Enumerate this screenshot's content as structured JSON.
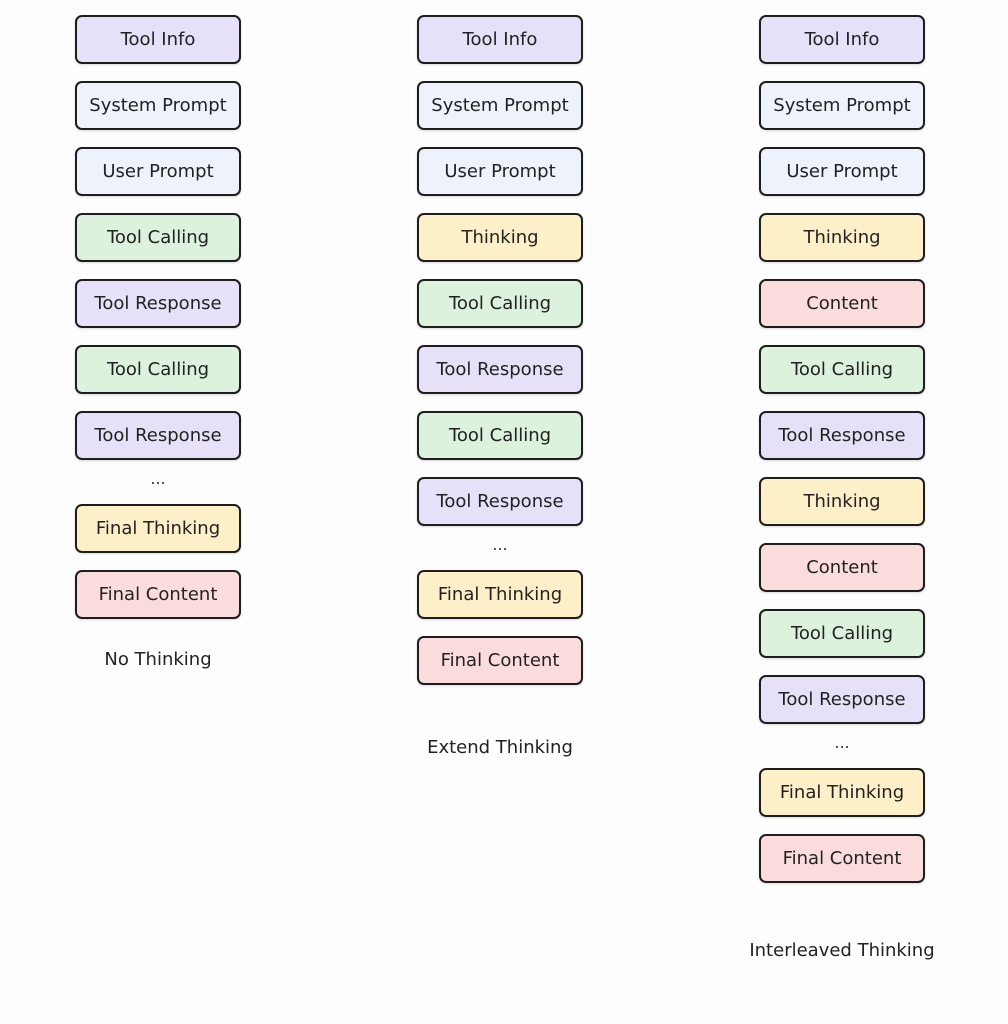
{
  "colors": {
    "Tool Info": "#e6e0f8",
    "System Prompt": "#edf2fb",
    "User Prompt": "#edf2fb",
    "Tool Calling": "#dcf2dc",
    "Tool Response": "#e6e0f8",
    "Thinking": "#fdf0c8",
    "Final Thinking": "#fdf0c8",
    "Content": "#fbdcdc",
    "Final Content": "#fbdcdc"
  },
  "columns": [
    {
      "label": "No Thinking",
      "items": [
        "Tool Info",
        "System Prompt",
        "User Prompt",
        "Tool Calling",
        "Tool Response",
        "Tool Calling",
        "Tool Response",
        "...",
        "Final Thinking",
        "Final Content"
      ]
    },
    {
      "label": "Extend Thinking",
      "items": [
        "Tool Info",
        "System Prompt",
        "User Prompt",
        "Thinking",
        "Tool Calling",
        "Tool Response",
        "Tool Calling",
        "Tool Response",
        "...",
        "Final Thinking",
        "Final Content"
      ]
    },
    {
      "label": "Interleaved Thinking",
      "items": [
        "Tool Info",
        "System Prompt",
        "User Prompt",
        "Thinking",
        "Content",
        "Tool Calling",
        "Tool Response",
        "Thinking",
        "Content",
        "Tool Calling",
        "Tool Response",
        "...",
        "Final Thinking",
        "Final Content"
      ]
    }
  ]
}
